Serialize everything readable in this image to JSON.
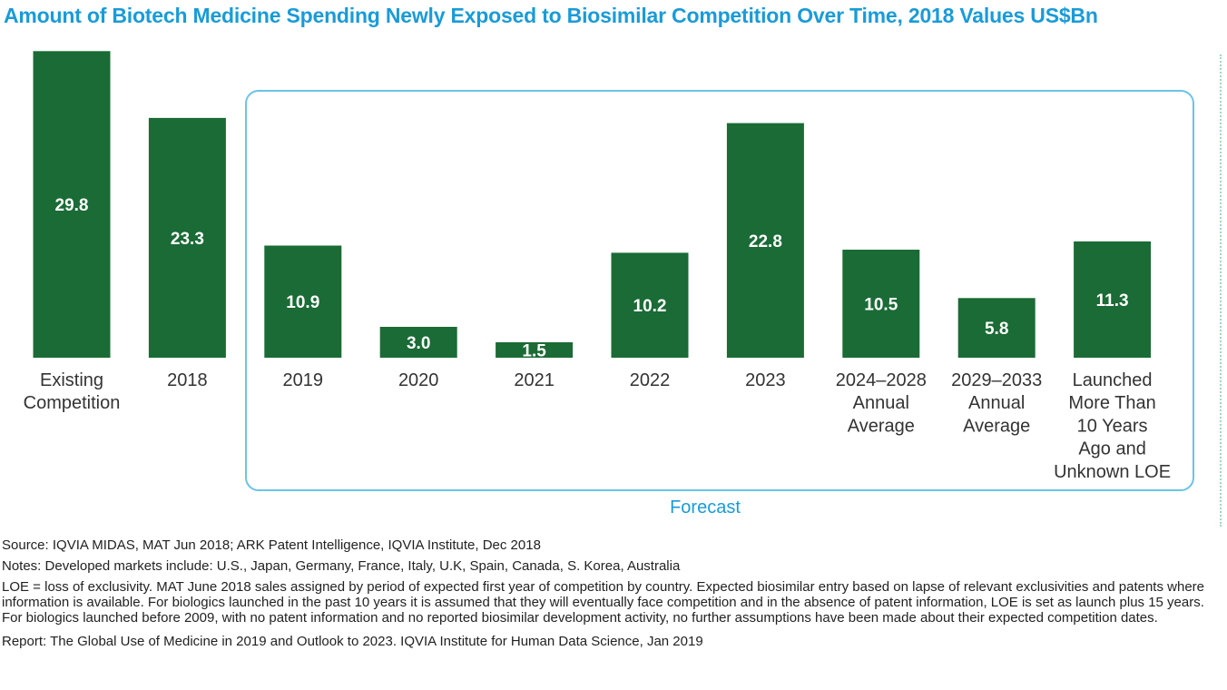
{
  "title": "Amount of Biotech Medicine Spending Newly Exposed to Biosimilar Competition Over Time, 2018 Values US$Bn",
  "colors": {
    "bar": "#1a6b35",
    "accent": "#1a9bd7",
    "frame": "#6cc3e6"
  },
  "chart_data": {
    "type": "bar",
    "title": "Amount of Biotech Medicine Spending Newly Exposed to Biosimilar Competition Over Time, 2018 Values US$Bn",
    "categories": [
      [
        "Existing",
        "Competition"
      ],
      [
        "2018"
      ],
      [
        "2019"
      ],
      [
        "2020"
      ],
      [
        "2021"
      ],
      [
        "2022"
      ],
      [
        "2023"
      ],
      [
        "2024–2028",
        "Annual",
        "Average"
      ],
      [
        "2029–2033",
        "Annual",
        "Average"
      ],
      [
        "Launched",
        "More Than",
        "10 Years",
        "Ago and",
        "Unknown LOE"
      ]
    ],
    "values": [
      29.8,
      23.3,
      10.9,
      3.0,
      1.5,
      10.2,
      22.8,
      10.5,
      5.8,
      11.3
    ],
    "labels": [
      "29.8",
      "23.3",
      "10.9",
      "3.0",
      "1.5",
      "10.2",
      "22.8",
      "10.5",
      "5.8",
      "11.3"
    ],
    "ylim": [
      0,
      30
    ],
    "grid": false,
    "forecast_group": {
      "label": "Forecast",
      "from_index": 2,
      "to_index": 9
    }
  },
  "notes": {
    "source": "Source: IQVIA MIDAS, MAT Jun 2018; ARK Patent Intelligence, IQVIA Institute, Dec 2018",
    "developed": "Notes: Developed markets include: U.S., Japan, Germany, France, Italy, U.K, Spain, Canada, S. Korea, Australia",
    "loe": "LOE = loss of exclusivity. MAT June 2018 sales assigned by period of expected first year of competition by country. Expected biosimilar entry based on lapse of relevant exclusivities and patents where information is available. For biologics launched in the past 10 years it is assumed that they will eventually face competition and in the absence of patent information, LOE is set as launch plus 15 years. For biologics launched before 2009, with no patent information and no reported biosimilar development activity, no further assumptions have been made about their expected competition dates.",
    "report": "Report: The Global Use of Medicine in 2019 and Outlook to 2023. IQVIA Institute for Human Data Science, Jan 2019"
  }
}
